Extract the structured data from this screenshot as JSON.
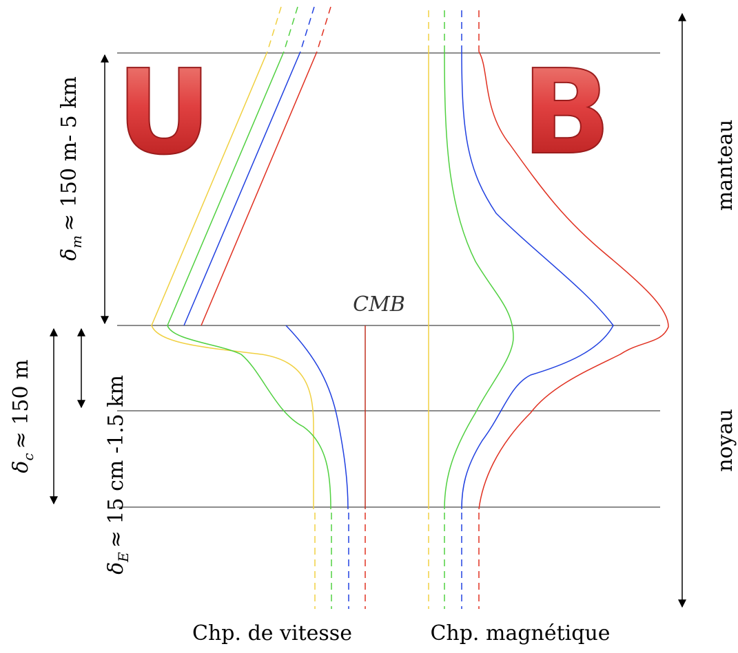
{
  "letters": {
    "velocity": "U",
    "magnetic": "B"
  },
  "boundary": "CMB",
  "regions": {
    "mantle": "manteau",
    "core": "noyau"
  },
  "thicknesses": [
    {
      "symbol": "δ",
      "subscript": "m",
      "text": "≈ 150 m- 5 km"
    },
    {
      "symbol": "δ",
      "subscript": "c",
      "text": "≈ 150 m"
    },
    {
      "symbol": "δ",
      "subscript": "E",
      "text": "≈ 15 cm -1.5 km"
    }
  ],
  "captions": {
    "velocity": "Chp. de vitesse",
    "magnetic": "Chp. magnétique"
  }
}
